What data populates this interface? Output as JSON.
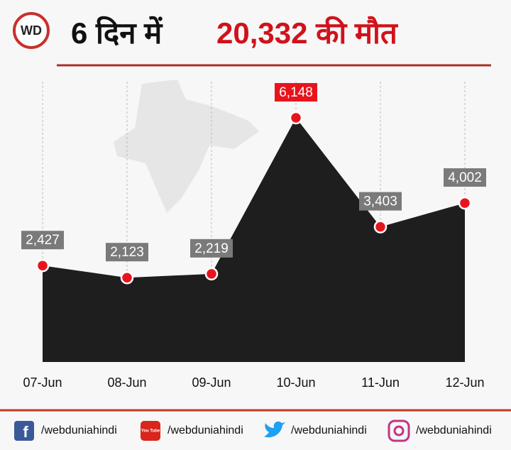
{
  "header": {
    "logo": "WD",
    "title_part1": "6 दिन में",
    "title_part2": "20,332 की मौत"
  },
  "chart_data": {
    "type": "area",
    "categories": [
      "07-Jun",
      "08-Jun",
      "09-Jun",
      "10-Jun",
      "11-Jun",
      "12-Jun"
    ],
    "values": [
      2427,
      2123,
      2219,
      6148,
      3403,
      4002
    ],
    "value_labels": [
      "2,427",
      "2,123",
      "2,219",
      "6,148",
      "3,403",
      "4,002"
    ],
    "value_label_colors": [
      "#7a7a7a",
      "#7a7a7a",
      "#7a7a7a",
      "#e8141c",
      "#7a7a7a",
      "#7a7a7a"
    ],
    "color": "#1e1e1e",
    "marker_color": "#e8141c"
  },
  "footer": {
    "links": [
      {
        "icon_text": "f",
        "handle": "/webduniahindi"
      },
      {
        "icon_text": "You Tube",
        "handle": "/webduniahindi"
      },
      {
        "icon_text": "",
        "handle": "/webduniahindi"
      },
      {
        "icon_text": "",
        "handle": "/webduniahindi"
      }
    ]
  }
}
